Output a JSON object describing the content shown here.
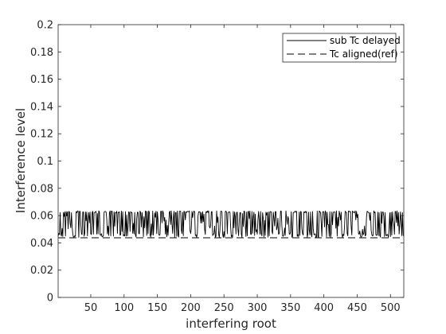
{
  "chart_data": {
    "type": "line",
    "title": "",
    "xlabel": "interfering root",
    "ylabel": "Interference level",
    "xlim": [
      1,
      520
    ],
    "ylim": [
      0,
      0.2
    ],
    "xticks": [
      50,
      100,
      150,
      200,
      250,
      300,
      350,
      400,
      450,
      500
    ],
    "yticks": [
      0,
      0.02,
      0.04,
      0.06,
      0.08,
      0.1,
      0.12,
      0.14,
      0.16,
      0.18,
      0.2
    ],
    "xtick_labels": [
      "50",
      "100",
      "150",
      "200",
      "250",
      "300",
      "350",
      "400",
      "450",
      "500"
    ],
    "ytick_labels": [
      "0",
      "0.02",
      "0.04",
      "0.06",
      "0.08",
      "0.1",
      "0.12",
      "0.14",
      "0.16",
      "0.18",
      "0.2"
    ],
    "grid": false,
    "legend_position": "top-right",
    "series": [
      {
        "name": "sub Tc delayed",
        "style": "solid",
        "color": "#000000",
        "x_range": [
          1,
          520
        ],
        "y_range": [
          0.044,
          0.0635
        ],
        "oscillating": true
      },
      {
        "name": "Tc aligned(ref)",
        "style": "dashed",
        "color": "#000000",
        "x": [
          1,
          520
        ],
        "y": [
          0.0437,
          0.0437
        ]
      }
    ]
  },
  "legend": {
    "entries": [
      "sub Tc delayed",
      "Tc aligned(ref)"
    ]
  }
}
